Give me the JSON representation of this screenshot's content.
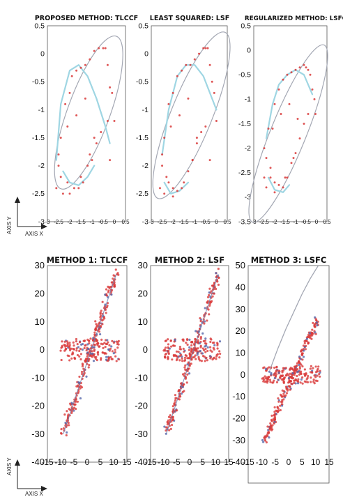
{
  "corner_axes": [
    {
      "xlabel": "AXIS X",
      "ylabel": "AXIS Y"
    },
    {
      "xlabel": "AXIS X",
      "ylabel": "AXIS Y"
    }
  ],
  "colors": {
    "points": "#d93a3a",
    "fit_gray": "#a3a7b3",
    "fit_cyan": "#9fd6e3",
    "frame": "#555555"
  },
  "chart_data": [
    {
      "type": "scatter",
      "title": "PROPOSED METHOD: TLCCF",
      "xlim": [
        -3,
        0.5
      ],
      "ylim": [
        -3,
        0.5
      ],
      "xticks": [
        "-3",
        "-2.5",
        "-2",
        "-1.5",
        "-1",
        "-0.5",
        "0",
        "0.5"
      ],
      "yticks": [
        "0.5",
        "0",
        "-0.5",
        "-1",
        "-1.5",
        "-2",
        "-2.5",
        "-3"
      ],
      "ellipse": {
        "cx": -1.15,
        "cy": -1.05,
        "rx": 0.95,
        "ry": 1.45,
        "rotation_deg": 20
      },
      "cyan_curves": [
        {
          "x": [
            -2.6,
            -2.4,
            -2.0,
            -1.6,
            -1.2,
            -0.8,
            -0.4,
            -0.2
          ],
          "y": [
            -1.9,
            -0.9,
            -0.3,
            -0.2,
            -0.4,
            -0.8,
            -1.3,
            -1.6
          ]
        },
        {
          "x": [
            -2.3,
            -2.0,
            -1.6,
            -1.2,
            -0.9
          ],
          "y": [
            -2.1,
            -2.3,
            -2.35,
            -2.2,
            -2.0
          ]
        }
      ],
      "points": {
        "x": [
          -2.6,
          -2.5,
          -2.4,
          -2.4,
          -2.2,
          -2.0,
          -1.9,
          -1.7,
          -1.5,
          -1.3,
          -1.1,
          -0.9,
          -0.7,
          -0.5,
          -0.4,
          -0.3,
          -0.2,
          -0.1,
          0.0,
          -2.3,
          -2.1,
          -1.8,
          -1.6,
          -1.4,
          -1.2,
          -1.0,
          -0.8,
          -0.6,
          -0.3,
          -0.2,
          -2.5,
          -2.1,
          -1.7,
          -1.3,
          -0.9,
          -2.0,
          -1.5,
          -1.1
        ],
        "y": [
          -2.4,
          -2.0,
          -1.5,
          -2.2,
          -0.9,
          -0.7,
          -0.4,
          -0.3,
          -0.25,
          -0.2,
          -0.1,
          0.05,
          0.1,
          0.1,
          0.1,
          -0.2,
          -0.6,
          -0.7,
          -1.2,
          -2.5,
          -2.3,
          -2.4,
          -2.4,
          -2.3,
          -2.0,
          -1.9,
          -1.6,
          -1.4,
          -1.2,
          -1.9,
          -1.8,
          -1.3,
          -1.1,
          -0.8,
          -1.5,
          -2.5,
          -2.2,
          -1.8
        ]
      }
    },
    {
      "type": "scatter",
      "title": "LEAST SQUARED: LSF",
      "xlim": [
        -3,
        0.5
      ],
      "ylim": [
        -3,
        0.5
      ],
      "xticks": [
        "-3",
        "-2.5",
        "-2",
        "-1.5",
        "-1",
        "-0.5",
        "0",
        "0.5"
      ],
      "yticks": [
        "0.5",
        "0",
        "-0.5",
        "-1",
        "-1.5",
        "-2",
        "-2.5",
        "-3"
      ],
      "ellipse": {
        "cx": -1.15,
        "cy": -1.1,
        "rx": 0.95,
        "ry": 1.6,
        "rotation_deg": 22
      },
      "cyan_curves": [
        {
          "x": [
            -2.5,
            -2.2,
            -1.8,
            -1.4,
            -1.0,
            -0.6,
            -0.2,
            0.0
          ],
          "y": [
            -1.8,
            -1.0,
            -0.4,
            -0.2,
            -0.2,
            -0.4,
            -0.8,
            -1.0
          ]
        },
        {
          "x": [
            -2.4,
            -2.1,
            -1.7,
            -1.3
          ],
          "y": [
            -2.3,
            -2.5,
            -2.45,
            -2.3
          ]
        }
      ],
      "points": {
        "x": [
          -2.6,
          -2.5,
          -2.4,
          -2.3,
          -2.2,
          -2.0,
          -1.8,
          -1.6,
          -1.4,
          -1.2,
          -1.0,
          -0.8,
          -0.6,
          -0.5,
          -0.4,
          -0.3,
          -0.2,
          -0.1,
          0.0,
          -2.4,
          -2.2,
          -2.0,
          -1.8,
          -1.6,
          -1.3,
          -1.1,
          -0.9,
          -0.7,
          -0.5,
          -0.3,
          -2.5,
          -2.1,
          -1.7,
          -1.3,
          -0.9,
          -2.0,
          -1.5,
          -1.1
        ],
        "y": [
          -2.4,
          -2.0,
          -1.5,
          -2.2,
          -0.9,
          -0.7,
          -0.4,
          -0.3,
          -0.2,
          -0.2,
          -0.1,
          0.0,
          0.1,
          0.1,
          0.1,
          -0.2,
          -0.5,
          -0.7,
          -1.2,
          -2.5,
          -2.3,
          -2.4,
          -2.45,
          -2.4,
          -2.1,
          -1.9,
          -1.6,
          -1.4,
          -1.3,
          -1.9,
          -1.8,
          -1.3,
          -1.1,
          -0.8,
          -1.5,
          -2.55,
          -2.3,
          -1.9
        ]
      }
    },
    {
      "type": "scatter",
      "title": "REGULARIZED METHOD: LSFC",
      "xlim": [
        -3,
        0.5
      ],
      "ylim": [
        -3.5,
        0.5
      ],
      "xticks": [
        "-3",
        "-2.5",
        "-2",
        "-1.5",
        "-1",
        "-0.5",
        "0",
        "0.5"
      ],
      "yticks": [
        "0.5",
        "0",
        "-0.5",
        "-1",
        "-1.5",
        "-2",
        "-2.5",
        "-3",
        "-3.5"
      ],
      "ellipse": {
        "cx": -1.35,
        "cy": -1.7,
        "rx": 0.85,
        "ry": 1.95,
        "rotation_deg": 22
      },
      "cyan_curves": [
        {
          "x": [
            -2.4,
            -2.1,
            -1.8,
            -1.4,
            -1.0,
            -0.6,
            -0.2
          ],
          "y": [
            -1.8,
            -1.1,
            -0.7,
            -0.5,
            -0.4,
            -0.5,
            -0.9
          ]
        },
        {
          "x": [
            -2.3,
            -2.0,
            -1.6,
            -1.3
          ],
          "y": [
            -2.6,
            -2.85,
            -2.9,
            -2.75
          ]
        }
      ],
      "points": {
        "x": [
          -2.5,
          -2.4,
          -2.3,
          -2.2,
          -2.0,
          -1.8,
          -1.6,
          -1.4,
          -1.2,
          -1.0,
          -0.8,
          -0.6,
          -0.5,
          -0.4,
          -0.3,
          -0.2,
          -0.1,
          -0.05,
          -2.4,
          -2.2,
          -2.0,
          -1.8,
          -1.6,
          -1.4,
          -1.2,
          -1.0,
          -0.8,
          -0.6,
          -0.4,
          -2.5,
          -2.1,
          -1.7,
          -1.3,
          -0.9,
          -2.0,
          -1.5,
          -1.1
        ],
        "y": [
          -2.6,
          -2.2,
          -1.6,
          -2.4,
          -1.1,
          -0.8,
          -0.6,
          -0.5,
          -0.45,
          -0.4,
          -0.35,
          -0.3,
          -0.35,
          -0.4,
          -0.5,
          -0.8,
          -1.0,
          -1.3,
          -2.8,
          -2.6,
          -2.7,
          -2.75,
          -2.8,
          -2.6,
          -2.3,
          -2.1,
          -1.8,
          -1.5,
          -1.3,
          -2.0,
          -1.6,
          -1.3,
          -1.1,
          -1.4,
          -2.9,
          -2.6,
          -2.2
        ]
      }
    },
    {
      "type": "scatter",
      "title": "METHOD 1: TLCCF",
      "xlim": [
        -15,
        15
      ],
      "ylim": [
        -40,
        30
      ],
      "xticks": [
        "-15",
        "-10",
        "-5",
        "0",
        "5",
        "10",
        "15"
      ],
      "yticks": [
        "30",
        "20",
        "10",
        "0",
        "-10",
        "-20",
        "-30",
        "-40"
      ],
      "fit_line": {
        "x": [
          -9,
          11
        ],
        "y": [
          -30,
          27
        ]
      },
      "clusters": [
        {
          "kind": "line",
          "x0": -9,
          "y0": -30,
          "x1": 11,
          "y1": 27,
          "n": 220,
          "spread": 1.8
        },
        {
          "kind": "band",
          "x0": -10,
          "x1": 12,
          "ymin": -4,
          "ymax": 4,
          "n": 160
        }
      ]
    },
    {
      "type": "scatter",
      "title": "METHOD 2: LSF",
      "xlim": [
        -15,
        15
      ],
      "ylim": [
        -40,
        30
      ],
      "xticks": [
        "-15",
        "-10",
        "-5",
        "0",
        "5",
        "10",
        "15"
      ],
      "yticks": [
        "30",
        "20",
        "10",
        "0",
        "-10",
        "-20",
        "-30",
        "-40"
      ],
      "fit_line": {
        "x": [
          -9,
          11
        ],
        "y": [
          -30,
          27
        ]
      },
      "clusters": [
        {
          "kind": "line",
          "x0": -9,
          "y0": -30,
          "x1": 11,
          "y1": 27,
          "n": 220,
          "spread": 1.8
        },
        {
          "kind": "band",
          "x0": -10,
          "x1": 12,
          "ymin": -4,
          "ymax": 4,
          "n": 160
        }
      ]
    },
    {
      "type": "scatter",
      "title": "METHOD 3: LSFC",
      "xlim": [
        -15,
        15
      ],
      "ylim": [
        -40,
        50
      ],
      "xticks": [
        "-15",
        "-10",
        "-5",
        "0",
        "5",
        "10",
        "15"
      ],
      "yticks": [
        "50",
        "40",
        "30",
        "20",
        "10",
        "0",
        "-10",
        "-20",
        "-30",
        "-40"
      ],
      "fit_curve": {
        "x": [
          -7,
          -4,
          -1,
          2,
          5,
          8,
          10,
          11
        ],
        "y": [
          2,
          12,
          21,
          29,
          37,
          44,
          48,
          50
        ]
      },
      "clusters": [
        {
          "kind": "line",
          "x0": -9,
          "y0": -30,
          "x1": 11,
          "y1": 26,
          "n": 220,
          "spread": 1.8
        },
        {
          "kind": "band",
          "x0": -10,
          "x1": 12,
          "ymin": -4,
          "ymax": 4,
          "n": 160
        }
      ]
    }
  ]
}
